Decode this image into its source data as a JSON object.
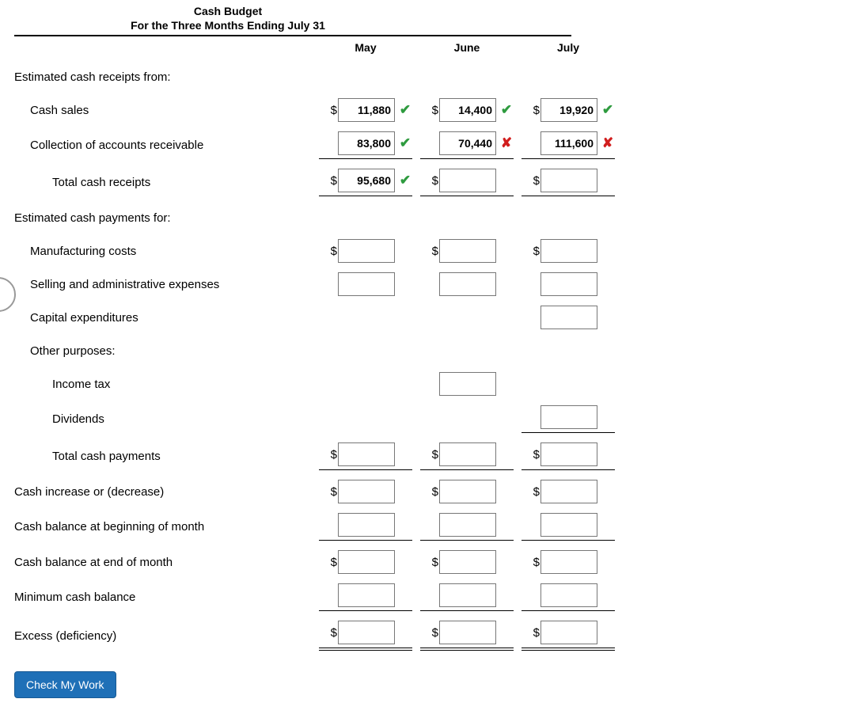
{
  "title": {
    "line1": "Cash Budget",
    "line2": "For the Three Months Ending July 31"
  },
  "columns": [
    "May",
    "June",
    "July"
  ],
  "marks": {
    "ok": "✔",
    "bad": "✘"
  },
  "colors": {
    "ok": "#2e9b3f",
    "bad": "#d11e1e",
    "button_bg": "#1f70b7",
    "rule": "#000000"
  },
  "button": {
    "label": "Check My Work"
  },
  "rows": [
    {
      "id": "hdr-receipts",
      "label": "Estimated cash receipts from:",
      "indent": 0,
      "cells": [
        null,
        null,
        null
      ]
    },
    {
      "id": "cash-sales",
      "label": "Cash sales",
      "indent": 1,
      "cells": [
        {
          "dollar": true,
          "value": "11,880",
          "mark": "ok"
        },
        {
          "dollar": true,
          "value": "14,400",
          "mark": "ok"
        },
        {
          "dollar": true,
          "value": "19,920",
          "mark": "ok"
        }
      ]
    },
    {
      "id": "collections-ar",
      "label": "Collection of accounts receivable",
      "indent": 1,
      "border": "thin",
      "cells": [
        {
          "dollar": false,
          "value": "83,800",
          "mark": "ok"
        },
        {
          "dollar": false,
          "value": "70,440",
          "mark": "bad"
        },
        {
          "dollar": false,
          "value": "111,600",
          "mark": "bad"
        }
      ]
    },
    {
      "id": "total-receipts",
      "label": "Total cash receipts",
      "indent": 2,
      "border": "thin",
      "cells": [
        {
          "dollar": true,
          "value": "95,680",
          "mark": "ok"
        },
        {
          "dollar": true,
          "value": "",
          "mark": null
        },
        {
          "dollar": true,
          "value": "",
          "mark": null
        }
      ]
    },
    {
      "id": "hdr-payments",
      "label": "Estimated cash payments for:",
      "indent": 0,
      "cells": [
        null,
        null,
        null
      ]
    },
    {
      "id": "mfg-costs",
      "label": "Manufacturing costs",
      "indent": 1,
      "cells": [
        {
          "dollar": true,
          "value": "",
          "mark": null
        },
        {
          "dollar": true,
          "value": "",
          "mark": null
        },
        {
          "dollar": true,
          "value": "",
          "mark": null
        }
      ]
    },
    {
      "id": "sa-exp",
      "label": "Selling and administrative expenses",
      "indent": 1,
      "cells": [
        {
          "dollar": false,
          "value": "",
          "mark": null
        },
        {
          "dollar": false,
          "value": "",
          "mark": null
        },
        {
          "dollar": false,
          "value": "",
          "mark": null
        }
      ]
    },
    {
      "id": "capex",
      "label": "Capital expenditures",
      "indent": 1,
      "cells": [
        null,
        null,
        {
          "dollar": false,
          "value": "",
          "mark": null
        }
      ]
    },
    {
      "id": "other-purposes",
      "label": "Other purposes:",
      "indent": 1,
      "cells": [
        null,
        null,
        null
      ]
    },
    {
      "id": "income-tax",
      "label": "Income tax",
      "indent": 2,
      "cells": [
        null,
        {
          "dollar": false,
          "value": "",
          "mark": null
        },
        null
      ]
    },
    {
      "id": "dividends",
      "label": "Dividends",
      "indent": 2,
      "border": "thin",
      "cells": [
        null,
        null,
        {
          "dollar": false,
          "value": "",
          "mark": null
        }
      ]
    },
    {
      "id": "total-payments",
      "label": "Total cash payments",
      "indent": 2,
      "border": "thin",
      "cells": [
        {
          "dollar": true,
          "value": "",
          "mark": null
        },
        {
          "dollar": true,
          "value": "",
          "mark": null
        },
        {
          "dollar": true,
          "value": "",
          "mark": null
        }
      ]
    },
    {
      "id": "cash-change",
      "label": "Cash increase or (decrease)",
      "indent": 0,
      "cells": [
        {
          "dollar": true,
          "value": "",
          "mark": null
        },
        {
          "dollar": true,
          "value": "",
          "mark": null
        },
        {
          "dollar": true,
          "value": "",
          "mark": null
        }
      ]
    },
    {
      "id": "begin-balance",
      "label": "Cash balance at beginning of month",
      "indent": 0,
      "border": "thin",
      "cells": [
        {
          "dollar": false,
          "value": "",
          "mark": null
        },
        {
          "dollar": false,
          "value": "",
          "mark": null
        },
        {
          "dollar": false,
          "value": "",
          "mark": null
        }
      ]
    },
    {
      "id": "end-balance",
      "label": "Cash balance at end of month",
      "indent": 0,
      "cells": [
        {
          "dollar": true,
          "value": "",
          "mark": null
        },
        {
          "dollar": true,
          "value": "",
          "mark": null
        },
        {
          "dollar": true,
          "value": "",
          "mark": null
        }
      ]
    },
    {
      "id": "min-balance",
      "label": "Minimum cash balance",
      "indent": 0,
      "border": "thin",
      "cells": [
        {
          "dollar": false,
          "value": "",
          "mark": null
        },
        {
          "dollar": false,
          "value": "",
          "mark": null
        },
        {
          "dollar": false,
          "value": "",
          "mark": null
        }
      ]
    },
    {
      "id": "excess",
      "label": "Excess (deficiency)",
      "indent": 0,
      "border": "double",
      "cells": [
        {
          "dollar": true,
          "value": "",
          "mark": null
        },
        {
          "dollar": true,
          "value": "",
          "mark": null
        },
        {
          "dollar": true,
          "value": "",
          "mark": null
        }
      ]
    }
  ]
}
